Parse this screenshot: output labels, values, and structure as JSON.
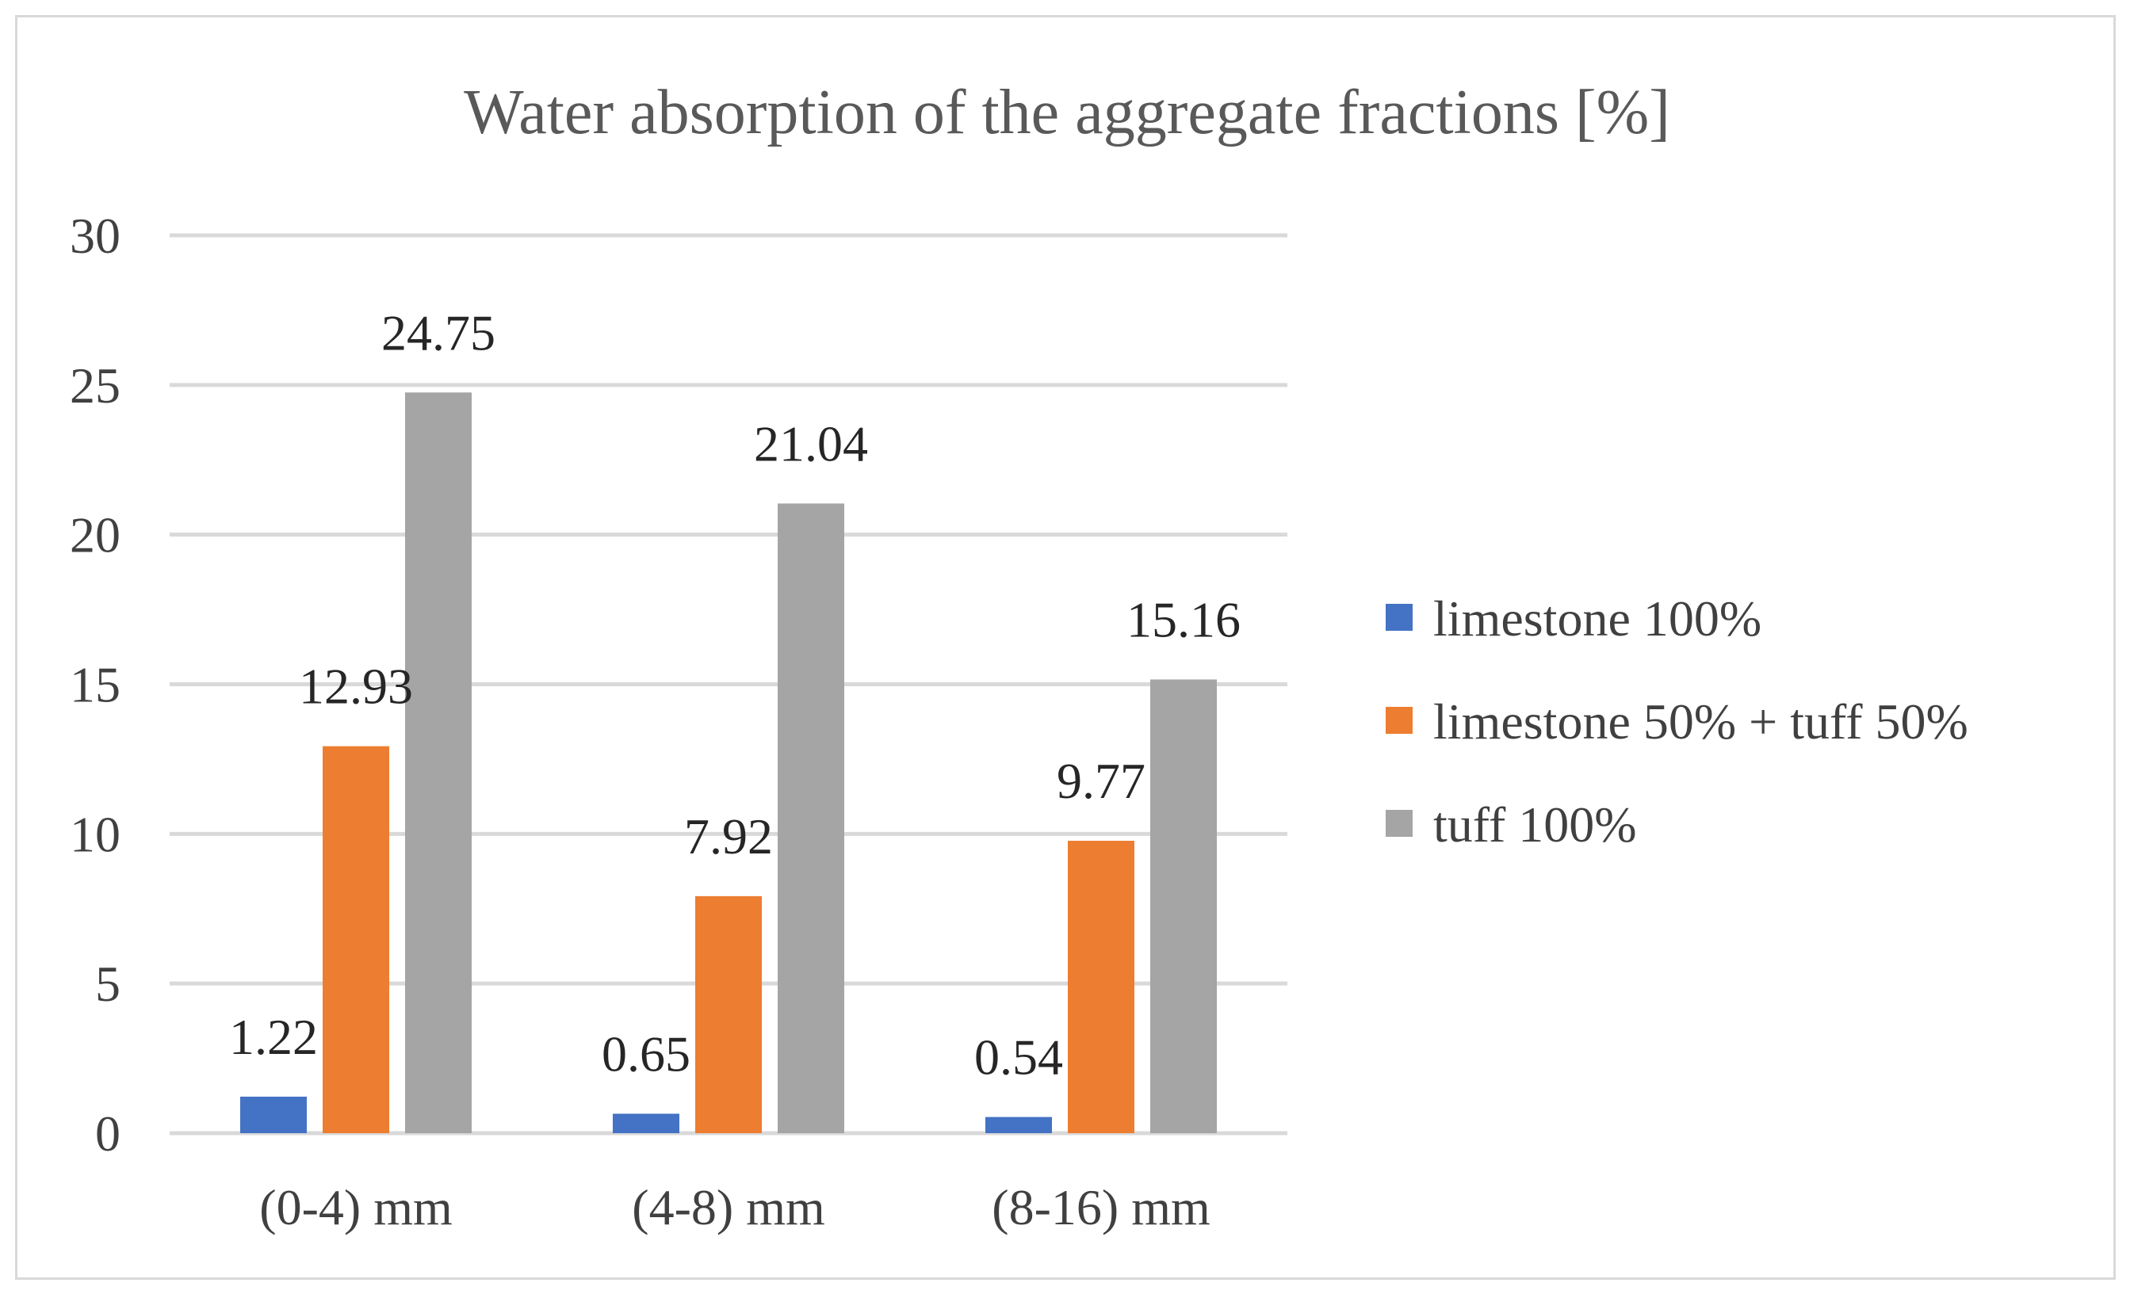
{
  "chart_data": {
    "type": "bar",
    "title": "Water absorption of the aggregate fractions [%]",
    "xlabel": "",
    "ylabel": "",
    "ylim": [
      0,
      30
    ],
    "yticks": [
      0,
      5,
      10,
      15,
      20,
      25,
      30
    ],
    "grid": true,
    "legend_position": "right",
    "categories": [
      "(0-4) mm",
      "(4-8) mm",
      "(8-16) mm"
    ],
    "series": [
      {
        "name": "limestone 100%",
        "color": "#4472c4",
        "values": [
          1.22,
          0.65,
          0.54
        ]
      },
      {
        "name": "limestone 50% + tuff 50%",
        "color": "#ed7d31",
        "values": [
          12.93,
          7.92,
          9.77
        ]
      },
      {
        "name": " tuff 100%",
        "color": "#a5a5a5",
        "values": [
          24.75,
          21.04,
          15.16
        ]
      }
    ],
    "data_labels": [
      [
        "1.22",
        "0.65",
        "0.54"
      ],
      [
        "12.93",
        "7.92",
        "9.77"
      ],
      [
        "24.75",
        "21.04",
        "15.16"
      ]
    ]
  }
}
